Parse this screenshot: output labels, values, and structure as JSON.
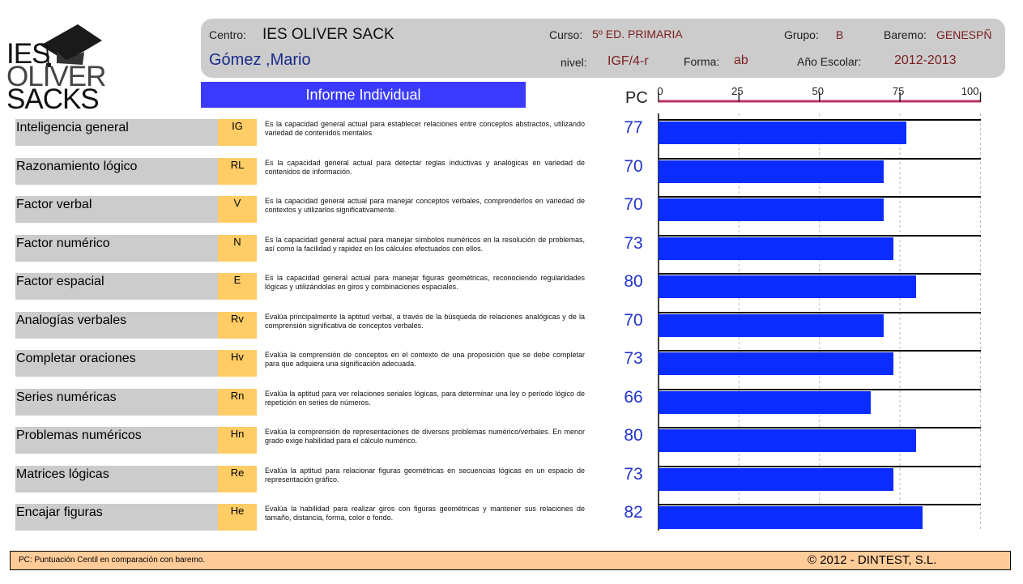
{
  "logo": {
    "line1": "IES",
    "line2": "OLIVER",
    "line3": "SACKS"
  },
  "header": {
    "centro_label": "Centro:",
    "centro_value": "IES OLIVER SACK",
    "student_name": "Gómez ,Mario",
    "curso_label": "Curso:",
    "curso_value": "5º ED. PRIMARIA",
    "grupo_label": "Grupo:",
    "grupo_value": "B",
    "baremo_label": "Baremo:",
    "baremo_value": "GENESPÑ",
    "nivel_label": "nivel:",
    "nivel_value": "IGF/4-r",
    "forma_label": "Forma:",
    "forma_value": "ab",
    "anio_label": "Año Escolar:",
    "anio_value": "2012-2013"
  },
  "report_title": "Informe Individual",
  "pc_header": "PC",
  "chart_data": {
    "type": "bar",
    "orientation": "horizontal",
    "x_ticks": [
      "0",
      "25",
      "50",
      "75",
      "100"
    ],
    "xlim": [
      0,
      100
    ],
    "categories": [
      "Inteligencia general",
      "Razonamiento lógico",
      "Factor verbal",
      "Factor numérico",
      "Factor espacial",
      "Analogías verbales",
      "Completar oraciones",
      "Series numéricas",
      "Problemas numéricos",
      "Matrices lógicas",
      "Encajar figuras"
    ],
    "values": [
      77,
      70,
      70,
      73,
      80,
      70,
      73,
      66,
      80,
      73,
      82
    ],
    "accent_color": "#0a2cff",
    "axis_color": "#c0306a"
  },
  "rows": [
    {
      "label": "Inteligencia general",
      "code": "IG",
      "desc": "Es la capacidad general actual para establecer relaciones entre conceptos abstractos, utilizando variedad de contenidos mentales",
      "pc": "77"
    },
    {
      "label": "Razonamiento lógico",
      "code": "RL",
      "desc": "Es la capacidad general actual para detectar reglas inductivas y analógicas en variedad de contenidos de información.",
      "pc": "70"
    },
    {
      "label": "Factor verbal",
      "code": "V",
      "desc": "Es la capacidad general actual para manejar conceptos verbales, comprenderlos en variedad de contextos y utilizarlos significativamente.",
      "pc": "70"
    },
    {
      "label": "Factor numérico",
      "code": "N",
      "desc": "Es la capacidad general actual para manejar símbolos numéricos en la resolución de problemas, así como la facilidad y rapidez en los cálculos efectuados con ellos.",
      "pc": "73"
    },
    {
      "label": "Factor espacial",
      "code": "E",
      "desc": "Es la capacidad general actual para manejar figuras geométricas, reconociendo regularidades lógicas y utilizándolas en giros y combinaciones espaciales.",
      "pc": "80"
    },
    {
      "label": "Analogías verbales",
      "code": "Rv",
      "desc": "Evalúa principalmente la aptitud verbal, a través de la búsqueda de relaciones analógicas y de la comprensión significativa de conceptos verbales.",
      "pc": "70"
    },
    {
      "label": "Completar oraciones",
      "code": "Hv",
      "desc": "Evalúa la comprensión de conceptos en el contexto de una proposición que se debe completar para que adquiera una significación adecuada.",
      "pc": "73"
    },
    {
      "label": "Series numéricas",
      "code": "Rn",
      "desc": "Evalúa la aptitud para ver relaciones seriales lógicas, para determinar una ley o período lógico de repetición en series de números.",
      "pc": "66"
    },
    {
      "label": "Problemas numéricos",
      "code": "Hn",
      "desc": "Evalúa la comprensión de representaciones de diversos problemas numérico/verbales. En menor grado exige habilidad para el cálculo numérico.",
      "pc": "80"
    },
    {
      "label": "Matrices lógicas",
      "code": "Re",
      "desc": "Evalúa la aptitud para relacionar figuras geométricas en secuencias lógicas en un espacio de representación gráfico.",
      "pc": "73"
    },
    {
      "label": "Encajar figuras",
      "code": "He",
      "desc": "Evalúa la habilidad para realizar giros con figuras geométricas y mantener sus relaciones de tamaño, distancia, forma, color o fondo.",
      "pc": "82"
    }
  ],
  "footer": {
    "note": "PC: Puntuación Centil en comparación con baremo.",
    "copyright": "© 2012 - DINTEST, S.L."
  }
}
